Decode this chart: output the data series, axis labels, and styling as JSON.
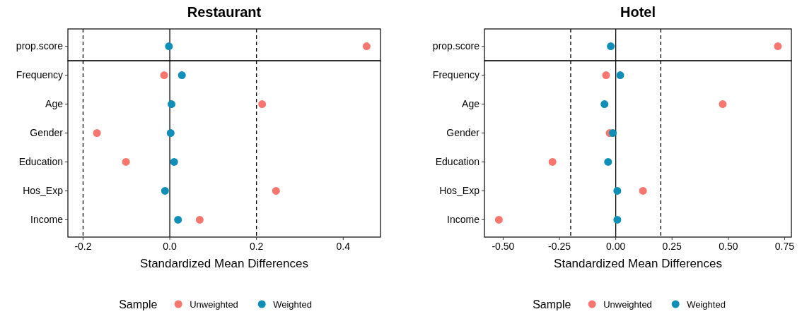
{
  "chart_data": [
    {
      "type": "scatter",
      "title": "Restaurant",
      "xlabel": "Standardized Mean Differences",
      "orientation": "horizontal",
      "categories": [
        "prop.score",
        "Frequency",
        "Age",
        "Gender",
        "Education",
        "Hos_Exp",
        "Income"
      ],
      "series": [
        {
          "name": "Unweighted",
          "color": "#f8766d",
          "values": [
            0.454,
            -0.013,
            0.213,
            -0.168,
            -0.101,
            0.245,
            0.069
          ]
        },
        {
          "name": "Weighted",
          "color": "#0f8fb8",
          "values": [
            -0.002,
            0.028,
            0.004,
            0.002,
            0.01,
            -0.011,
            0.019
          ]
        }
      ],
      "xlim": [
        -0.235,
        0.486
      ],
      "xticks": [
        -0.2,
        {
          "value": 0,
          "label": "0.0"
        },
        0.2,
        0.4
      ],
      "ref_lines": [
        {
          "axis": "x",
          "value": -0.2,
          "line_style": "dashed",
          "color": "#000000"
        },
        {
          "axis": "x",
          "value": 0,
          "line_style": "solid",
          "color": "#000000"
        },
        {
          "axis": "x",
          "value": 0.2,
          "line_style": "dashed",
          "color": "#000000"
        }
      ],
      "legend": "bottom",
      "legend_title": "Sample",
      "marker": "circle",
      "grid": false
    },
    {
      "type": "scatter",
      "title": "Hotel",
      "xlabel": "Standardized Mean Differences",
      "orientation": "horizontal",
      "categories": [
        "prop.score",
        "Frequency",
        "Age",
        "Gender",
        "Education",
        "Hos_Exp",
        "Income"
      ],
      "series": [
        {
          "name": "Unweighted",
          "color": "#f8766d",
          "values": [
            0.72,
            -0.043,
            0.475,
            -0.027,
            -0.281,
            0.121,
            -0.519
          ]
        },
        {
          "name": "Weighted",
          "color": "#0f8fb8",
          "values": [
            -0.022,
            0.02,
            -0.05,
            -0.013,
            -0.034,
            0.007,
            0.007
          ]
        }
      ],
      "xlim": [
        -0.583,
        0.78
      ],
      "xticks": [
        {
          "value": -0.5,
          "label": "-0.50"
        },
        {
          "value": -0.25,
          "label": "-0.25"
        },
        {
          "value": 0,
          "label": "0.00"
        },
        {
          "value": 0.25,
          "label": "0.25"
        },
        {
          "value": 0.5,
          "label": "0.50"
        },
        {
          "value": 0.75,
          "label": "0.75"
        }
      ],
      "ref_lines": [
        {
          "axis": "x",
          "value": -0.2,
          "line_style": "dashed",
          "color": "#000000"
        },
        {
          "axis": "x",
          "value": 0,
          "line_style": "solid",
          "color": "#000000"
        },
        {
          "axis": "x",
          "value": 0.2,
          "line_style": "dashed",
          "color": "#000000"
        }
      ],
      "legend": "bottom",
      "legend_title": "Sample",
      "marker": "circle",
      "grid": false
    }
  ]
}
